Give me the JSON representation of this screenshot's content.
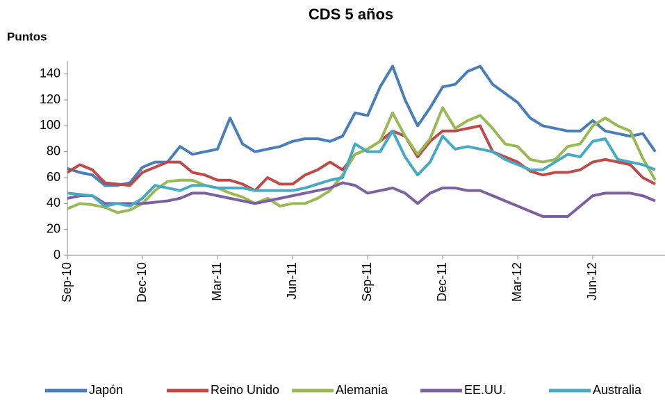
{
  "chart_data": {
    "type": "line",
    "title": "CDS 5 años",
    "y_label": "Puntos",
    "categories": [
      "Sep-10",
      null,
      null,
      null,
      null,
      null,
      "Dec-10",
      null,
      null,
      null,
      null,
      null,
      "Mar-11",
      null,
      null,
      null,
      null,
      null,
      "Jun-11",
      null,
      null,
      null,
      null,
      null,
      "Sep-11",
      null,
      null,
      null,
      null,
      null,
      "Dec-11",
      null,
      null,
      null,
      null,
      null,
      "Mar-12",
      null,
      null,
      null,
      null,
      null,
      "Jun-12",
      null,
      null,
      null,
      null,
      null
    ],
    "series": [
      {
        "name": "Japón",
        "color": "#4a7ebb",
        "values": [
          67,
          64,
          62,
          54,
          54,
          56,
          68,
          72,
          72,
          84,
          78,
          80,
          82,
          106,
          86,
          80,
          82,
          84,
          88,
          90,
          90,
          88,
          92,
          110,
          108,
          130,
          146,
          120,
          100,
          114,
          130,
          132,
          142,
          146,
          132,
          125,
          118,
          106,
          100,
          98,
          96,
          96,
          104,
          96,
          94,
          92,
          94,
          80
        ]
      },
      {
        "name": "Reino Unido",
        "color": "#be4b48",
        "values": [
          64,
          70,
          66,
          56,
          55,
          54,
          64,
          68,
          72,
          72,
          64,
          62,
          58,
          58,
          55,
          50,
          60,
          55,
          55,
          62,
          66,
          72,
          66,
          78,
          82,
          88,
          96,
          92,
          76,
          88,
          96,
          96,
          98,
          100,
          80,
          76,
          72,
          65,
          62,
          64,
          64,
          66,
          72,
          74,
          72,
          70,
          60,
          55
        ]
      },
      {
        "name": "Alemania",
        "color": "#98b954",
        "values": [
          36,
          40,
          39,
          37,
          33,
          35,
          40,
          50,
          57,
          58,
          58,
          54,
          52,
          48,
          45,
          40,
          44,
          38,
          40,
          40,
          44,
          50,
          62,
          78,
          82,
          88,
          110,
          92,
          78,
          90,
          114,
          98,
          104,
          108,
          98,
          86,
          84,
          74,
          72,
          74,
          84,
          86,
          100,
          106,
          100,
          96,
          75,
          58
        ]
      },
      {
        "name": "EE.UU.",
        "color": "#7d60a0",
        "values": [
          44,
          46,
          46,
          40,
          40,
          40,
          40,
          41,
          42,
          44,
          48,
          48,
          46,
          44,
          42,
          40,
          42,
          44,
          46,
          48,
          50,
          52,
          56,
          54,
          48,
          50,
          52,
          48,
          40,
          48,
          52,
          52,
          50,
          50,
          46,
          42,
          38,
          34,
          30,
          30,
          30,
          38,
          46,
          48,
          48,
          48,
          46,
          42
        ]
      },
      {
        "name": "Australia",
        "color": "#46aac5",
        "values": [
          48,
          47,
          46,
          38,
          40,
          38,
          44,
          54,
          52,
          50,
          54,
          54,
          52,
          52,
          52,
          50,
          50,
          50,
          50,
          52,
          55,
          58,
          60,
          86,
          80,
          80,
          96,
          76,
          62,
          72,
          92,
          82,
          84,
          82,
          80,
          74,
          70,
          66,
          66,
          72,
          78,
          76,
          88,
          90,
          74,
          72,
          70,
          66
        ]
      }
    ],
    "ylim": [
      0,
      150
    ],
    "yticks": [
      0,
      20,
      40,
      60,
      80,
      100,
      120,
      140
    ],
    "legend": "bottom"
  }
}
